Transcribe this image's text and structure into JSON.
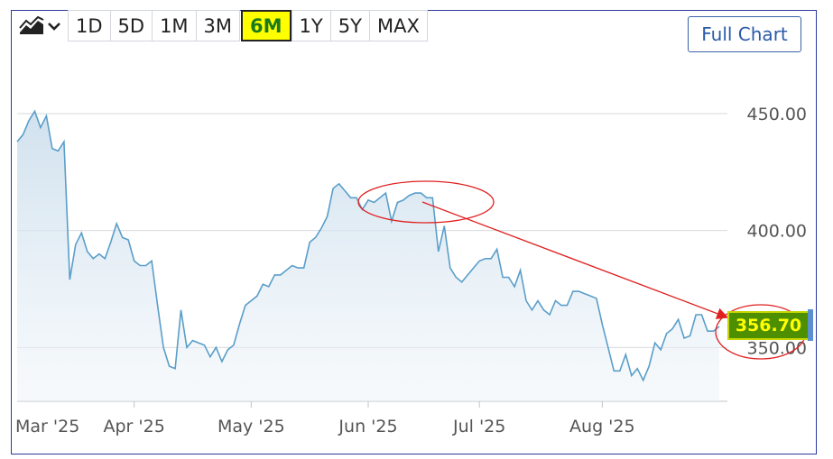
{
  "toolbar": {
    "chart_type_icon": "area-chart-icon",
    "dropdown_icon": "chevron-down-icon",
    "ranges": [
      "1D",
      "5D",
      "1M",
      "3M",
      "6M",
      "1Y",
      "5Y",
      "MAX"
    ],
    "active_range": "6M",
    "full_chart_label": "Full Chart"
  },
  "price_tag": {
    "value": "356.70"
  },
  "colors": {
    "line": "#5a9ec9",
    "active_range_bg": "#ffff00",
    "active_range_text": "#1a7a1a",
    "price_tag_bg": "#4e8f00",
    "price_tag_text": "#ffff00",
    "annotation": "#e02020"
  },
  "chart_data": {
    "type": "area",
    "title": "",
    "xlabel": "",
    "ylabel": "",
    "ylim": [
      327,
      460
    ],
    "y_ticks": [
      "450.00",
      "400.00",
      "350.00"
    ],
    "x_ticks": [
      {
        "label": "Mar '25",
        "i": 0
      },
      {
        "label": "Apr '25",
        "i": 20
      },
      {
        "label": "May '25",
        "i": 40
      },
      {
        "label": "Jun '25",
        "i": 60
      },
      {
        "label": "Jul '25",
        "i": 79
      },
      {
        "label": "Aug '25",
        "i": 100
      }
    ],
    "grid": true,
    "values": [
      438,
      441,
      447,
      451,
      444,
      449,
      435,
      434,
      438,
      379,
      394,
      399,
      391,
      388,
      390,
      388,
      395,
      403,
      397,
      396,
      387,
      385,
      385,
      387,
      368,
      350,
      342,
      341,
      366,
      350,
      353,
      352,
      351,
      346,
      350,
      344,
      349,
      351,
      360,
      368,
      370,
      372,
      377,
      376,
      381,
      381,
      383,
      385,
      384,
      384,
      395,
      397,
      401,
      406,
      418,
      420,
      417,
      414,
      414,
      409,
      413,
      412,
      414,
      416,
      404,
      412,
      413,
      415,
      416,
      416,
      414,
      414,
      391,
      402,
      384,
      380,
      378,
      381,
      384,
      387,
      388,
      388,
      392,
      380,
      380,
      376,
      383,
      370,
      366,
      370,
      366,
      364,
      370,
      368,
      368,
      374,
      374,
      373,
      372,
      371,
      360,
      350,
      340,
      340,
      347,
      338,
      341,
      336,
      342,
      352,
      349,
      356,
      358,
      362,
      354,
      355,
      364,
      364,
      357,
      357,
      359
    ]
  }
}
